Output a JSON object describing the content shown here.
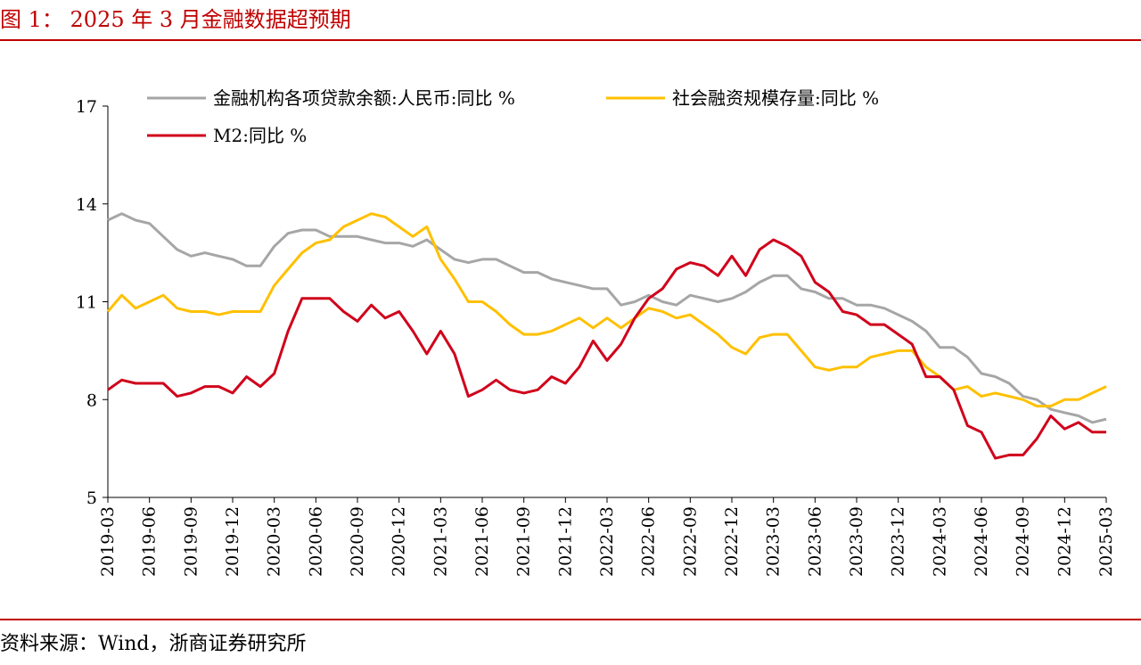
{
  "header": {
    "title": "图 1：  2025 年 3 月金融数据超预期"
  },
  "footer": {
    "source": "资料来源：Wind，浙商证券研究所"
  },
  "colors": {
    "accent": "#c00000",
    "loans": "#a6a6a6",
    "tsf": "#ffc000",
    "m2": "#d0021b"
  },
  "chart_data": {
    "type": "line",
    "title": "",
    "xlabel": "",
    "ylabel": "",
    "ylim": [
      5,
      17
    ],
    "yticks": [
      5,
      8,
      11,
      14,
      17
    ],
    "grid": false,
    "legend_position": "top-left",
    "xticks": [
      "2019-03",
      "2019-06",
      "2019-09",
      "2019-12",
      "2020-03",
      "2020-06",
      "2020-09",
      "2020-12",
      "2021-03",
      "2021-06",
      "2021-09",
      "2021-12",
      "2022-03",
      "2022-06",
      "2022-09",
      "2022-12",
      "2023-03",
      "2023-06",
      "2023-09",
      "2023-12",
      "2024-03",
      "2024-06",
      "2024-09",
      "2024-12",
      "2025-03"
    ],
    "x": [
      "2019-03",
      "2019-04",
      "2019-05",
      "2019-06",
      "2019-07",
      "2019-08",
      "2019-09",
      "2019-10",
      "2019-11",
      "2019-12",
      "2020-01",
      "2020-02",
      "2020-03",
      "2020-04",
      "2020-05",
      "2020-06",
      "2020-07",
      "2020-08",
      "2020-09",
      "2020-10",
      "2020-11",
      "2020-12",
      "2021-01",
      "2021-02",
      "2021-03",
      "2021-04",
      "2021-05",
      "2021-06",
      "2021-07",
      "2021-08",
      "2021-09",
      "2021-10",
      "2021-11",
      "2021-12",
      "2022-01",
      "2022-02",
      "2022-03",
      "2022-04",
      "2022-05",
      "2022-06",
      "2022-07",
      "2022-08",
      "2022-09",
      "2022-10",
      "2022-11",
      "2022-12",
      "2023-01",
      "2023-02",
      "2023-03",
      "2023-04",
      "2023-05",
      "2023-06",
      "2023-07",
      "2023-08",
      "2023-09",
      "2023-10",
      "2023-11",
      "2023-12",
      "2024-01",
      "2024-02",
      "2024-03",
      "2024-04",
      "2024-05",
      "2024-06",
      "2024-07",
      "2024-08",
      "2024-09",
      "2024-10",
      "2024-11",
      "2024-12",
      "2025-01",
      "2025-02",
      "2025-03"
    ],
    "series": [
      {
        "name": "金融机构各项贷款余额:人民币:同比 %",
        "color": "#a6a6a6",
        "values": [
          13.5,
          13.7,
          13.5,
          13.4,
          13.0,
          12.6,
          12.4,
          12.5,
          12.4,
          12.3,
          12.1,
          12.1,
          12.7,
          13.1,
          13.2,
          13.2,
          13.0,
          13.0,
          13.0,
          12.9,
          12.8,
          12.8,
          12.7,
          12.9,
          12.6,
          12.3,
          12.2,
          12.3,
          12.3,
          12.1,
          11.9,
          11.9,
          11.7,
          11.6,
          11.5,
          11.4,
          11.4,
          10.9,
          11.0,
          11.2,
          11.0,
          10.9,
          11.2,
          11.1,
          11.0,
          11.1,
          11.3,
          11.6,
          11.8,
          11.8,
          11.4,
          11.3,
          11.1,
          11.1,
          10.9,
          10.9,
          10.8,
          10.6,
          10.4,
          10.1,
          9.6,
          9.6,
          9.3,
          8.8,
          8.7,
          8.5,
          8.1,
          8.0,
          7.7,
          7.6,
          7.5,
          7.3,
          7.4
        ]
      },
      {
        "name": "社会融资规模存量:同比 %",
        "color": "#ffc000",
        "values": [
          10.7,
          11.2,
          10.8,
          11.0,
          11.2,
          10.8,
          10.7,
          10.7,
          10.6,
          10.7,
          10.7,
          10.7,
          11.5,
          12.0,
          12.5,
          12.8,
          12.9,
          13.3,
          13.5,
          13.7,
          13.6,
          13.3,
          13.0,
          13.3,
          12.3,
          11.7,
          11.0,
          11.0,
          10.7,
          10.3,
          10.0,
          10.0,
          10.1,
          10.3,
          10.5,
          10.2,
          10.5,
          10.2,
          10.5,
          10.8,
          10.7,
          10.5,
          10.6,
          10.3,
          10.0,
          9.6,
          9.4,
          9.9,
          10.0,
          10.0,
          9.5,
          9.0,
          8.9,
          9.0,
          9.0,
          9.3,
          9.4,
          9.5,
          9.5,
          9.0,
          8.7,
          8.3,
          8.4,
          8.1,
          8.2,
          8.1,
          8.0,
          7.8,
          7.8,
          8.0,
          8.0,
          8.2,
          8.4
        ]
      },
      {
        "name": "M2:同比 %",
        "color": "#d0021b",
        "values": [
          8.3,
          8.6,
          8.5,
          8.5,
          8.5,
          8.1,
          8.2,
          8.4,
          8.4,
          8.2,
          8.7,
          8.4,
          8.8,
          10.1,
          11.1,
          11.1,
          11.1,
          10.7,
          10.4,
          10.9,
          10.5,
          10.7,
          10.1,
          9.4,
          10.1,
          9.4,
          8.1,
          8.3,
          8.6,
          8.3,
          8.2,
          8.3,
          8.7,
          8.5,
          9.0,
          9.8,
          9.2,
          9.7,
          10.5,
          11.1,
          11.4,
          12.0,
          12.2,
          12.1,
          11.8,
          12.4,
          11.8,
          12.6,
          12.9,
          12.7,
          12.4,
          11.6,
          11.3,
          10.7,
          10.6,
          10.3,
          10.3,
          10.0,
          9.7,
          8.7,
          8.7,
          8.3,
          7.2,
          7.0,
          6.2,
          6.3,
          6.3,
          6.8,
          7.5,
          7.1,
          7.3,
          7.0,
          7.0
        ]
      }
    ]
  }
}
